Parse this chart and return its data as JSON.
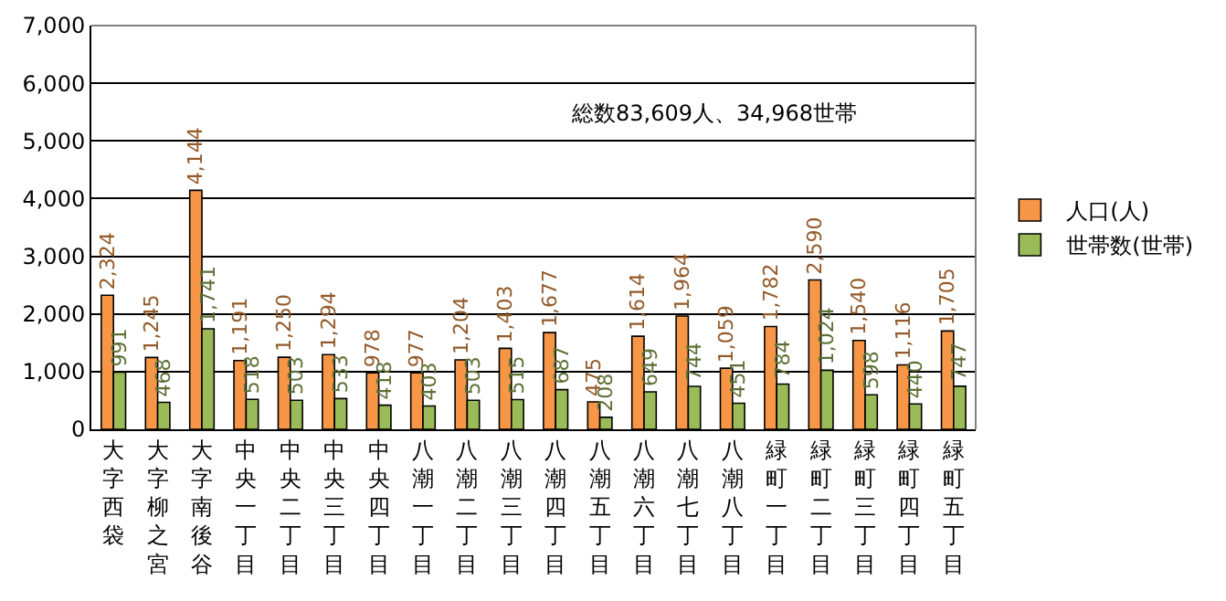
{
  "chart_data": {
    "type": "bar",
    "categories": [
      "大字西袋",
      "大字柳之宮",
      "大字南後谷",
      "中央一丁目",
      "中央二丁目",
      "中央三丁目",
      "中央四丁目",
      "八潮一丁目",
      "八潮二丁目",
      "八潮三丁目",
      "八潮四丁目",
      "八潮五丁目",
      "八潮六丁目",
      "八潮七丁目",
      "八潮八丁目",
      "緑町一丁目",
      "緑町二丁目",
      "緑町三丁目",
      "緑町四丁目",
      "緑町五丁目"
    ],
    "series": [
      {
        "name": "人口(人)",
        "color": "#f79646",
        "values": [
          2324,
          1245,
          4144,
          1191,
          1250,
          1294,
          978,
          977,
          1204,
          1403,
          1677,
          475,
          1614,
          1964,
          1059,
          1782,
          2590,
          1540,
          1116,
          1705
        ],
        "value_labels": [
          "2,324",
          "1,245",
          "4,144",
          "1,191",
          "1,250",
          "1,294",
          "978",
          "977",
          "1,204",
          "1,403",
          "1,677",
          "475",
          "1,614",
          "1,964",
          "1,059",
          "1,782",
          "2,590",
          "1,540",
          "1,116",
          "1,705"
        ]
      },
      {
        "name": "世帯数(世帯)",
        "color": "#9bbb59",
        "values": [
          991,
          468,
          1741,
          518,
          503,
          533,
          418,
          403,
          503,
          515,
          687,
          208,
          649,
          744,
          451,
          784,
          1024,
          598,
          440,
          747
        ],
        "value_labels": [
          "991",
          "468",
          "1,741",
          "518",
          "503",
          "533",
          "418",
          "403",
          "503",
          "515",
          "687",
          "208",
          "649",
          "744",
          "451",
          "784",
          "1,024",
          "598",
          "440",
          "747"
        ]
      }
    ],
    "ylim": [
      0,
      7000
    ],
    "yticks": [
      {
        "value": 0,
        "label": "0"
      },
      {
        "value": 1000,
        "label": "1,000"
      },
      {
        "value": 2000,
        "label": "2,000"
      },
      {
        "value": 3000,
        "label": "3,000"
      },
      {
        "value": 4000,
        "label": "4,000"
      },
      {
        "value": 5000,
        "label": "5,000"
      },
      {
        "value": 6000,
        "label": "6,000"
      },
      {
        "value": 7000,
        "label": "7,000"
      }
    ],
    "grid": "y",
    "legend": "right",
    "annotations": [
      "総数83,609人、34,968世帯"
    ]
  }
}
